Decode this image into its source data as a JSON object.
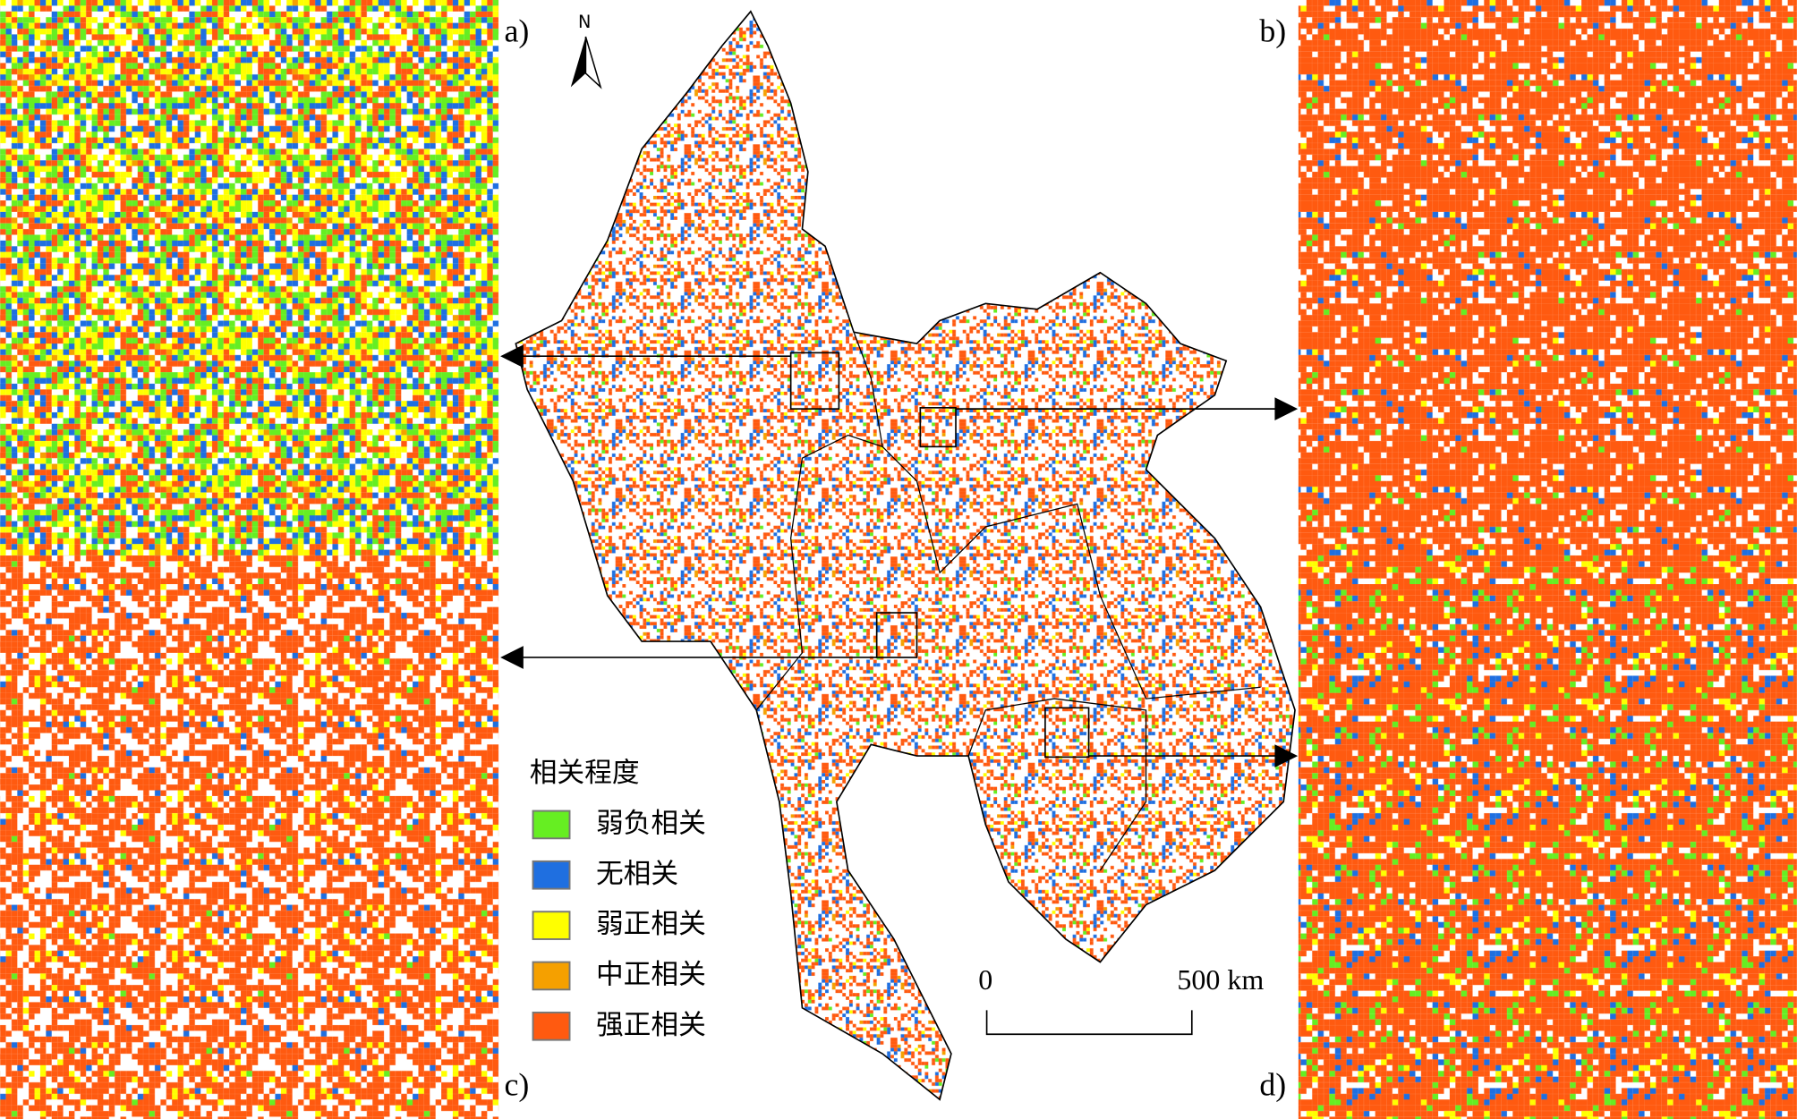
{
  "panels": [
    {
      "label": "a)"
    },
    {
      "label": "b)"
    },
    {
      "label": "c)"
    },
    {
      "label": "d)"
    }
  ],
  "north": "N",
  "legend": {
    "title": "相关程度",
    "items": [
      {
        "label": "弱负相关",
        "color": "#66ee22"
      },
      {
        "label": "无相关",
        "color": "#1f6fe0"
      },
      {
        "label": "弱正相关",
        "color": "#ffff00"
      },
      {
        "label": "中正相关",
        "color": "#f5a000"
      },
      {
        "label": "强正相关",
        "color": "#ff5a10"
      }
    ]
  },
  "scale_bar": {
    "start": "0",
    "end": "500 km"
  }
}
